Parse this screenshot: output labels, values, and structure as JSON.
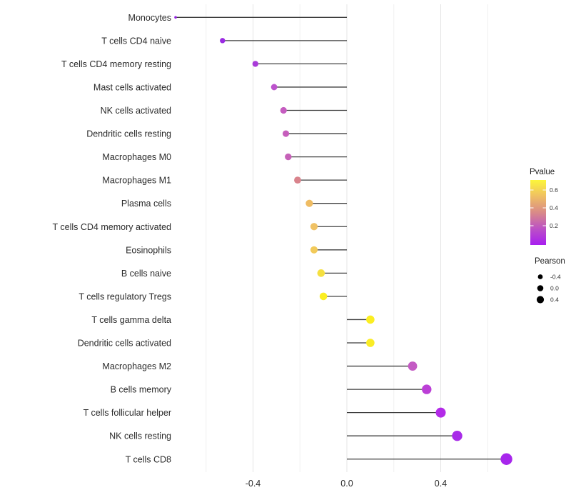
{
  "figure_title": "",
  "chart_data": {
    "type": "scatter",
    "variant": "lollipop",
    "orientation": "horizontal",
    "title": "",
    "xlabel": "",
    "ylabel": "",
    "xlim": [
      -0.8,
      0.75
    ],
    "grid": "on",
    "x_axis": {
      "tick_labels": [
        "-0.4",
        "0.0",
        "0.4"
      ],
      "tick_values": [
        -0.4,
        0.0,
        0.4
      ],
      "gridline_values": [
        -0.6,
        -0.4,
        -0.2,
        0.0,
        0.2,
        0.4,
        0.6
      ]
    },
    "categories": [
      "Monocytes",
      "T cells CD4 naive",
      "T cells CD4 memory resting",
      "Mast cells activated",
      "NK cells activated",
      "Dendritic cells resting",
      "Macrophages M0",
      "Macrophages M1",
      "Plasma cells",
      "T cells CD4 memory activated",
      "Eosinophils",
      "B cells naive",
      "T cells regulatory  Tregs",
      "T cells gamma delta",
      "Dendritic cells activated",
      "Macrophages M2",
      "B cells memory",
      "T cells follicular helper",
      "NK cells resting",
      "T cells CD8"
    ],
    "points": [
      {
        "category": "Monocytes",
        "pearson": -0.73,
        "pvalue": 0.01,
        "dot_color": "#9222E0",
        "dot_radius": 1.8
      },
      {
        "category": "T cells CD4 naive",
        "pearson": -0.53,
        "pvalue": 0.06,
        "dot_color": "#9A2BE2",
        "dot_radius": 3.7
      },
      {
        "category": "T cells CD4 memory resting",
        "pearson": -0.39,
        "pvalue": 0.12,
        "dot_color": "#A93BD9",
        "dot_radius": 4.2
      },
      {
        "category": "Mast cells activated",
        "pearson": -0.31,
        "pvalue": 0.22,
        "dot_color": "#BC53CC",
        "dot_radius": 4.4
      },
      {
        "category": "NK cells activated",
        "pearson": -0.27,
        "pvalue": 0.25,
        "dot_color": "#C55CC0",
        "dot_radius": 4.6
      },
      {
        "category": "Dendritic cells resting",
        "pearson": -0.26,
        "pvalue": 0.26,
        "dot_color": "#C65EBC",
        "dot_radius": 4.6
      },
      {
        "category": "Macrophages M0",
        "pearson": -0.25,
        "pvalue": 0.27,
        "dot_color": "#C661B8",
        "dot_radius": 4.7
      },
      {
        "category": "Macrophages M1",
        "pearson": -0.21,
        "pvalue": 0.35,
        "dot_color": "#D9838C",
        "dot_radius": 4.9
      },
      {
        "category": "Plasma cells",
        "pearson": -0.16,
        "pvalue": 0.48,
        "dot_color": "#EFBC63",
        "dot_radius": 5.1
      },
      {
        "category": "T cells CD4 memory activated",
        "pearson": -0.14,
        "pvalue": 0.5,
        "dot_color": "#F0C265",
        "dot_radius": 5.1
      },
      {
        "category": "Eosinophils",
        "pearson": -0.14,
        "pvalue": 0.52,
        "dot_color": "#F2CA5A",
        "dot_radius": 5.1
      },
      {
        "category": "B cells naive",
        "pearson": -0.11,
        "pvalue": 0.58,
        "dot_color": "#F5E040",
        "dot_radius": 5.3
      },
      {
        "category": "T cells regulatory  Tregs",
        "pearson": -0.1,
        "pvalue": 0.64,
        "dot_color": "#FBEE22",
        "dot_radius": 5.3
      },
      {
        "category": "T cells gamma delta",
        "pearson": 0.1,
        "pvalue": 0.64,
        "dot_color": "#FBEE22",
        "dot_radius": 5.8
      },
      {
        "category": "Dendritic cells activated",
        "pearson": 0.1,
        "pvalue": 0.63,
        "dot_color": "#FAEC26",
        "dot_radius": 5.8
      },
      {
        "category": "Macrophages M2",
        "pearson": 0.28,
        "pvalue": 0.21,
        "dot_color": "#C45BC4",
        "dot_radius": 6.4
      },
      {
        "category": "B cells memory",
        "pearson": 0.34,
        "pvalue": 0.14,
        "dot_color": "#BB3FD6",
        "dot_radius": 6.7
      },
      {
        "category": "T cells follicular helper",
        "pearson": 0.4,
        "pvalue": 0.09,
        "dot_color": "#B32BE8",
        "dot_radius": 7.0
      },
      {
        "category": "NK cells resting",
        "pearson": 0.47,
        "pvalue": 0.06,
        "dot_color": "#A82BE8",
        "dot_radius": 7.2
      },
      {
        "category": "T cells CD8",
        "pearson": 0.68,
        "pvalue": 0.01,
        "dot_color": "#A726EC",
        "dot_radius": 8.2
      }
    ],
    "legend_position": "right",
    "legends": {
      "pvalue_colorbar": {
        "title": "Pvalue",
        "tick_labels": [
          "0.6",
          "0.4",
          "0.2"
        ],
        "gradient_stops": [
          "#FCF63A",
          "#EFBF63",
          "#D98A88",
          "#BC51C5",
          "#A81EF0"
        ],
        "low_color_meaning": "low p-value (purple)",
        "high_color_meaning": "high p-value (yellow)"
      },
      "pearson_size": {
        "title": "Pearson",
        "items": [
          {
            "label": "-0.4",
            "radius": 3.4
          },
          {
            "label": "0.0",
            "radius": 4.3
          },
          {
            "label": "0.4",
            "radius": 5.1
          }
        ],
        "dot_color": "#000000"
      }
    },
    "colors": {
      "stem": "#3F3F3F",
      "grid_major": "#E4E4E4",
      "grid_minor": "#F0F0F0",
      "axis_text": "#2A2A2A",
      "legend_text": "#333333"
    }
  }
}
